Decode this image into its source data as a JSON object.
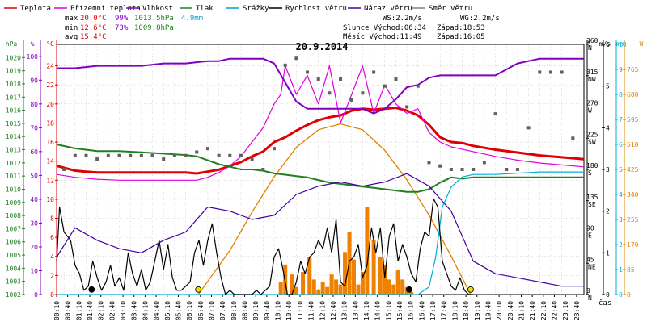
{
  "legend": [
    {
      "label": "Teplota",
      "color": "#e00000"
    },
    {
      "label": "Přízemní teplota",
      "color": "#e000e0"
    },
    {
      "label": "Vlhkost",
      "color": "#8000c0"
    },
    {
      "label": "Tlak",
      "color": "#208020"
    },
    {
      "label": "Srážky",
      "color": "#00a0d0"
    },
    {
      "label": "Rychlost větru",
      "color": "#000000"
    },
    {
      "label": "Náraz větru",
      "color": "#4000a0"
    },
    {
      "label": "Směr větru",
      "color": "#808080"
    }
  ],
  "stats": {
    "max_label": "max",
    "max_temp": "20.0°C",
    "max_hum": "99%",
    "max_press": "1013.5hPa",
    "max_rain": "4.9mm",
    "min_label": "min",
    "min_temp": "12.6°C",
    "min_hum": "73%",
    "min_press": "1009.8hPa",
    "avg_label": "avg",
    "avg_temp": "15.4°C"
  },
  "astro": {
    "ws": "WS:2.2m/s",
    "wg": "WG:2.2m/s",
    "sun": "Slunce Východ:06:34",
    "sun_set": "Západ:18:53",
    "moon": "Měsíc  Východ:11:49",
    "moon_set": "Západ:16:05"
  },
  "colors": {
    "temp": "#e00000",
    "ground": "#e000e0",
    "hum": "#8000c0",
    "press": "#208020",
    "rain": "#00b0d8",
    "wind": "#000000",
    "gust": "#4000a0",
    "dir": "#606060",
    "sun": "#e08000",
    "rainbar": "#f08000",
    "grid": "#c0c0c0"
  },
  "chart_data": {
    "type": "line",
    "title": "20.9.2014",
    "x_unit": "hours",
    "xlim": [
      0.1667,
      24.0
    ],
    "x_tick_labels": [
      "00:10",
      "00:40",
      "01:10",
      "01:40",
      "02:10",
      "02:40",
      "03:10",
      "03:40",
      "04:10",
      "04:40",
      "05:10",
      "05:40",
      "06:10",
      "06:40",
      "07:10",
      "07:40",
      "08:10",
      "08:40",
      "09:10",
      "09:40",
      "10:10",
      "10:40",
      "11:10",
      "11:40",
      "12:10",
      "12:40",
      "13:10",
      "13:40",
      "14:10",
      "14:40",
      "15:10",
      "15:40",
      "16:10",
      "16:40",
      "17:10",
      "17:40",
      "18:10",
      "18:40",
      "19:10",
      "19:40",
      "20:10",
      "20:40",
      "21:10",
      "21:40",
      "22:10",
      "22:40",
      "23:10",
      "23:40"
    ],
    "x_axis_label": "čas",
    "axes": {
      "hpa": {
        "unit": "hPa",
        "range": [
          1002,
          1021
        ],
        "ticks": [
          "1002",
          "1003",
          "1004",
          "1005",
          "1006",
          "1007",
          "1008",
          "1009",
          "1010",
          "1011",
          "1012",
          "1013",
          "1014",
          "1015",
          "1016",
          "1017",
          "1018",
          "1019",
          "1020"
        ]
      },
      "percent": {
        "unit": "%",
        "range": [
          0,
          105
        ],
        "ticks": [
          "0",
          "10",
          "20",
          "30",
          "40",
          "50",
          "60",
          "70",
          "80",
          "90",
          "100"
        ]
      },
      "celsius": {
        "unit": "°C",
        "range": [
          0,
          26.25
        ],
        "ticks": [
          "0",
          "2",
          "4",
          "6",
          "8",
          "10",
          "12",
          "14",
          "16",
          "18",
          "20",
          "22",
          "24"
        ]
      },
      "degrees": {
        "unit": "°",
        "range": [
          0,
          360
        ],
        "ticks": [
          {
            "deg": "0",
            "dir": "N"
          },
          {
            "deg": "45",
            "dir": "NE"
          },
          {
            "deg": "90",
            "dir": "E"
          },
          {
            "deg": "135",
            "dir": "SE"
          },
          {
            "deg": "180",
            "dir": "S"
          },
          {
            "deg": "225",
            "dir": "SW"
          },
          {
            "deg": "270",
            "dir": "W"
          },
          {
            "deg": "315",
            "dir": "NW"
          },
          {
            "deg": "360",
            "dir": "N"
          }
        ]
      },
      "ms": {
        "unit": "m/s",
        "range": [
          0,
          6
        ],
        "ticks": [
          "0",
          "1",
          "2",
          "3",
          "4",
          "5",
          "6"
        ]
      },
      "mm": {
        "unit": "mm",
        "range": [
          0,
          10
        ],
        "ticks": [
          "0",
          "1",
          "2",
          "3",
          "4",
          "5",
          "6",
          "7",
          "8",
          "9",
          "10"
        ]
      },
      "wm2": {
        "unit": "W",
        "range": [
          0,
          850
        ],
        "ticks": [
          "0",
          "85",
          "170",
          "255",
          "340",
          "425",
          "510",
          "595",
          "680",
          "765"
        ]
      }
    },
    "series": [
      {
        "name": "Teplota",
        "axis": "celsius",
        "color": "#e00000",
        "x": [
          0.17,
          1,
          1.5,
          2,
          3,
          4,
          5,
          6,
          6.5,
          7,
          7.5,
          8,
          8.5,
          9,
          9.5,
          10,
          10.5,
          11,
          11.5,
          12,
          12.5,
          13,
          13.5,
          14,
          14.5,
          15,
          15.5,
          16,
          16.5,
          17,
          17.5,
          18,
          18.5,
          19,
          20,
          21,
          22,
          23,
          24
        ],
        "y": [
          13.5,
          13.0,
          12.9,
          12.8,
          12.8,
          12.8,
          12.8,
          12.8,
          12.7,
          12.9,
          13.1,
          13.5,
          13.9,
          14.5,
          15.0,
          16.0,
          16.5,
          17.2,
          17.8,
          18.3,
          18.6,
          18.8,
          19.3,
          19.5,
          19.4,
          19.5,
          19.6,
          19.3,
          18.8,
          17.8,
          16.5,
          16.0,
          15.9,
          15.6,
          15.2,
          14.9,
          14.6,
          14.4,
          14.2
        ]
      },
      {
        "name": "Přízemní teplota",
        "axis": "celsius",
        "color": "#e000e0",
        "x": [
          0.17,
          1,
          2,
          3,
          4,
          5,
          6,
          6.5,
          7,
          7.5,
          8,
          8.5,
          9,
          9.5,
          10,
          10.3,
          10.5,
          11,
          11.5,
          12,
          12.5,
          13,
          13.5,
          14,
          14.5,
          15,
          15.5,
          16,
          16.5,
          17,
          17.5,
          18,
          19,
          20,
          21,
          22,
          23,
          24
        ],
        "y": [
          12.6,
          12.3,
          12.1,
          12.0,
          12.0,
          12.0,
          12.0,
          12.0,
          12.3,
          12.8,
          13.5,
          14.5,
          16.0,
          17.5,
          20.0,
          21.0,
          24.0,
          21.0,
          23.0,
          20.0,
          24.0,
          18.0,
          21.0,
          24.0,
          19.0,
          22.0,
          20.0,
          19.0,
          19.5,
          17.0,
          16.0,
          15.5,
          15.0,
          14.5,
          14.1,
          13.8,
          13.6,
          13.4
        ]
      },
      {
        "name": "Vlhkost",
        "axis": "percent",
        "color": "#8000c0",
        "x": [
          0.17,
          1,
          2,
          3,
          4,
          5,
          6,
          7,
          7.5,
          8,
          8.5,
          9,
          9.5,
          10,
          10.5,
          11,
          11.5,
          12,
          12.5,
          13,
          13.5,
          14,
          14.5,
          15,
          15.5,
          16,
          16.5,
          17,
          17.5,
          18,
          19,
          20,
          21,
          22,
          23,
          24
        ],
        "y": [
          95,
          95,
          96,
          96,
          96,
          97,
          97,
          98,
          98,
          99,
          99,
          99,
          99,
          97,
          89,
          81,
          78,
          78,
          78,
          78,
          78,
          78,
          76,
          78,
          82,
          87,
          88,
          91,
          92,
          92,
          92,
          92,
          97,
          99,
          99,
          99
        ]
      },
      {
        "name": "Tlak",
        "axis": "hpa",
        "color": "#208020",
        "x": [
          0.17,
          1,
          2,
          3,
          4,
          5,
          6,
          6.5,
          7,
          7.5,
          8,
          8.5,
          9,
          9.5,
          10,
          10.5,
          11,
          11.5,
          12,
          12.5,
          13,
          13.5,
          14,
          14.5,
          15,
          15.5,
          16,
          16.5,
          17,
          17.5,
          18,
          18.5,
          19,
          20,
          21,
          22,
          23,
          24
        ],
        "y": [
          1013.4,
          1013.1,
          1012.9,
          1012.9,
          1012.8,
          1012.7,
          1012.6,
          1012.5,
          1012.2,
          1011.9,
          1011.7,
          1011.5,
          1011.5,
          1011.4,
          1011.2,
          1011.1,
          1011.0,
          1010.9,
          1010.7,
          1010.5,
          1010.4,
          1010.3,
          1010.2,
          1010.1,
          1010.0,
          1009.9,
          1009.8,
          1009.8,
          1010.0,
          1010.5,
          1010.9,
          1010.8,
          1010.9,
          1010.9,
          1010.9,
          1010.9,
          1010.9,
          1010.9
        ]
      },
      {
        "name": "Srážky",
        "axis": "mm",
        "color": "#00b0d8",
        "x": [
          0.17,
          16.5,
          17,
          17.3,
          17.6,
          18,
          18.5,
          19,
          20,
          22,
          24
        ],
        "y": [
          0,
          0,
          0.3,
          1.5,
          3.5,
          4.3,
          4.7,
          4.8,
          4.8,
          4.9,
          4.9
        ]
      },
      {
        "name": "Rychlost větru",
        "axis": "ms",
        "color": "#000000",
        "x": [
          0.17,
          0.3,
          0.5,
          0.8,
          1.0,
          1.2,
          1.4,
          1.6,
          1.8,
          2.0,
          2.2,
          2.4,
          2.6,
          2.8,
          3.0,
          3.2,
          3.4,
          3.6,
          3.8,
          4.0,
          4.2,
          4.4,
          4.6,
          4.8,
          5.0,
          5.2,
          5.4,
          5.6,
          5.8,
          6.0,
          6.2,
          6.4,
          6.6,
          6.8,
          7.0,
          7.2,
          7.4,
          7.6,
          7.8,
          8.0,
          8.2,
          8.4,
          8.6,
          8.8,
          9.0,
          9.2,
          9.4,
          9.6,
          9.8,
          10.0,
          10.2,
          10.4,
          10.6,
          10.8,
          11.0,
          11.2,
          11.4,
          11.6,
          11.8,
          12.0,
          12.2,
          12.4,
          12.6,
          12.8,
          13.0,
          13.2,
          13.4,
          13.6,
          13.8,
          14.0,
          14.2,
          14.4,
          14.6,
          14.8,
          15.0,
          15.2,
          15.4,
          15.6,
          15.8,
          16.0,
          16.2,
          16.4,
          16.6,
          16.8,
          17.0,
          17.2,
          17.4,
          17.6,
          17.8,
          18.0,
          18.2,
          18.4,
          18.6,
          18.8,
          19.0
        ],
        "y": [
          0.8,
          2.1,
          1.5,
          1.3,
          0.7,
          0.5,
          0.1,
          0.2,
          0.8,
          0.4,
          0.1,
          0.3,
          0.7,
          0.2,
          0.4,
          0.1,
          1.0,
          0.5,
          0.2,
          0.6,
          0.1,
          0.3,
          0.8,
          1.3,
          0.6,
          1.2,
          0.4,
          0.1,
          0.1,
          0.2,
          0.3,
          1.0,
          1.3,
          0.7,
          1.3,
          1.7,
          1.0,
          0.4,
          0.0,
          0.1,
          0.0,
          0.0,
          0.0,
          0.0,
          0.0,
          0.1,
          0.0,
          0.1,
          0.2,
          0.9,
          1.1,
          0.6,
          0.0,
          0.0,
          0.3,
          0.8,
          0.5,
          0.9,
          1.0,
          1.3,
          1.1,
          1.6,
          1.0,
          1.8,
          0.3,
          0.2,
          0.8,
          0.9,
          1.2,
          0.4,
          0.7,
          1.6,
          1.0,
          1.6,
          0.4,
          1.4,
          1.7,
          0.8,
          1.2,
          0.9,
          0.5,
          0.3,
          1.1,
          1.5,
          1.4,
          2.3,
          2.1,
          0.8,
          0.5,
          0.2,
          0.1,
          0.4,
          0.1,
          0.0,
          0.0
        ]
      },
      {
        "name": "Náraz větru",
        "axis": "ms",
        "color": "#4000a0",
        "x": [
          0.17,
          1,
          2,
          3,
          4,
          5,
          6,
          7,
          8,
          9,
          10,
          11,
          12,
          13,
          14,
          15,
          16,
          17,
          18,
          19,
          20,
          21,
          22,
          23,
          24
        ],
        "y": [
          0.9,
          1.6,
          1.3,
          1.1,
          1.0,
          1.3,
          1.5,
          2.1,
          2.0,
          1.8,
          1.9,
          2.4,
          2.6,
          2.7,
          2.6,
          2.7,
          2.9,
          2.6,
          2.0,
          0.8,
          0.5,
          0.4,
          0.3,
          0.2,
          0.2
        ]
      },
      {
        "name": "Směr větru",
        "axis": "degrees",
        "color": "#606060",
        "x": [
          0.5,
          1,
          1.5,
          2,
          2.5,
          3,
          3.5,
          4,
          4.5,
          5,
          5.5,
          6,
          6.5,
          7,
          7.5,
          8,
          8.5,
          9,
          9.5,
          10,
          10.5,
          11,
          11.5,
          12,
          12.5,
          13,
          13.5,
          14,
          14.5,
          15,
          15.5,
          16,
          16.5,
          17,
          17.5,
          18,
          18.5,
          19,
          19.5,
          20,
          20.5,
          21,
          21.5,
          22,
          22.5,
          23,
          23.5
        ],
        "y": [
          180,
          200,
          200,
          195,
          200,
          200,
          200,
          200,
          200,
          195,
          200,
          200,
          205,
          210,
          200,
          200,
          200,
          195,
          180,
          210,
          330,
          340,
          320,
          310,
          290,
          310,
          280,
          290,
          320,
          300,
          310,
          270,
          300,
          190,
          185,
          180,
          180,
          180,
          190,
          260,
          180,
          180,
          240,
          320,
          320,
          320,
          225
        ]
      }
    ],
    "rain_intensity": {
      "axis": "mm",
      "color": "#f08000",
      "x": [
        10.3,
        10.5,
        10.8,
        11.0,
        11.3,
        11.6,
        11.8,
        12.0,
        12.2,
        12.4,
        12.6,
        12.8,
        13.0,
        13.2,
        13.4,
        13.6,
        13.8,
        14.0,
        14.2,
        14.5,
        14.8,
        15.0,
        15.2,
        15.4,
        15.6,
        15.8,
        16.0,
        16.2
      ],
      "y": [
        0.5,
        1.2,
        0.8,
        0.3,
        0.9,
        1.5,
        0.6,
        0.2,
        0.5,
        0.3,
        0.8,
        0.6,
        0.4,
        1.7,
        2.5,
        1.4,
        0.4,
        0.9,
        3.5,
        2.2,
        1.5,
        1.2,
        0.6,
        0.4,
        1.0,
        0.6,
        0.3,
        0.1
      ]
    },
    "solar": {
      "name": "Sluneční záření",
      "axis": "wm2",
      "color": "#e08000",
      "x": [
        6.57,
        8,
        9,
        10,
        11,
        12,
        13,
        14,
        15,
        16,
        17,
        18,
        18.88
      ],
      "y": [
        0,
        150,
        280,
        400,
        500,
        560,
        580,
        560,
        490,
        390,
        270,
        130,
        0
      ]
    },
    "markers": [
      {
        "x": 1.75,
        "axis": "ms",
        "y": 0.1,
        "fill": "#000000"
      },
      {
        "x": 6.57,
        "axis": "ms",
        "y": 0.1,
        "fill": "#f0e000"
      },
      {
        "x": 18.88,
        "axis": "ms",
        "y": 0.1,
        "fill": "#f0e000"
      },
      {
        "x": 16.1,
        "axis": "ms",
        "y": 0.1,
        "fill": "#000000"
      }
    ]
  }
}
